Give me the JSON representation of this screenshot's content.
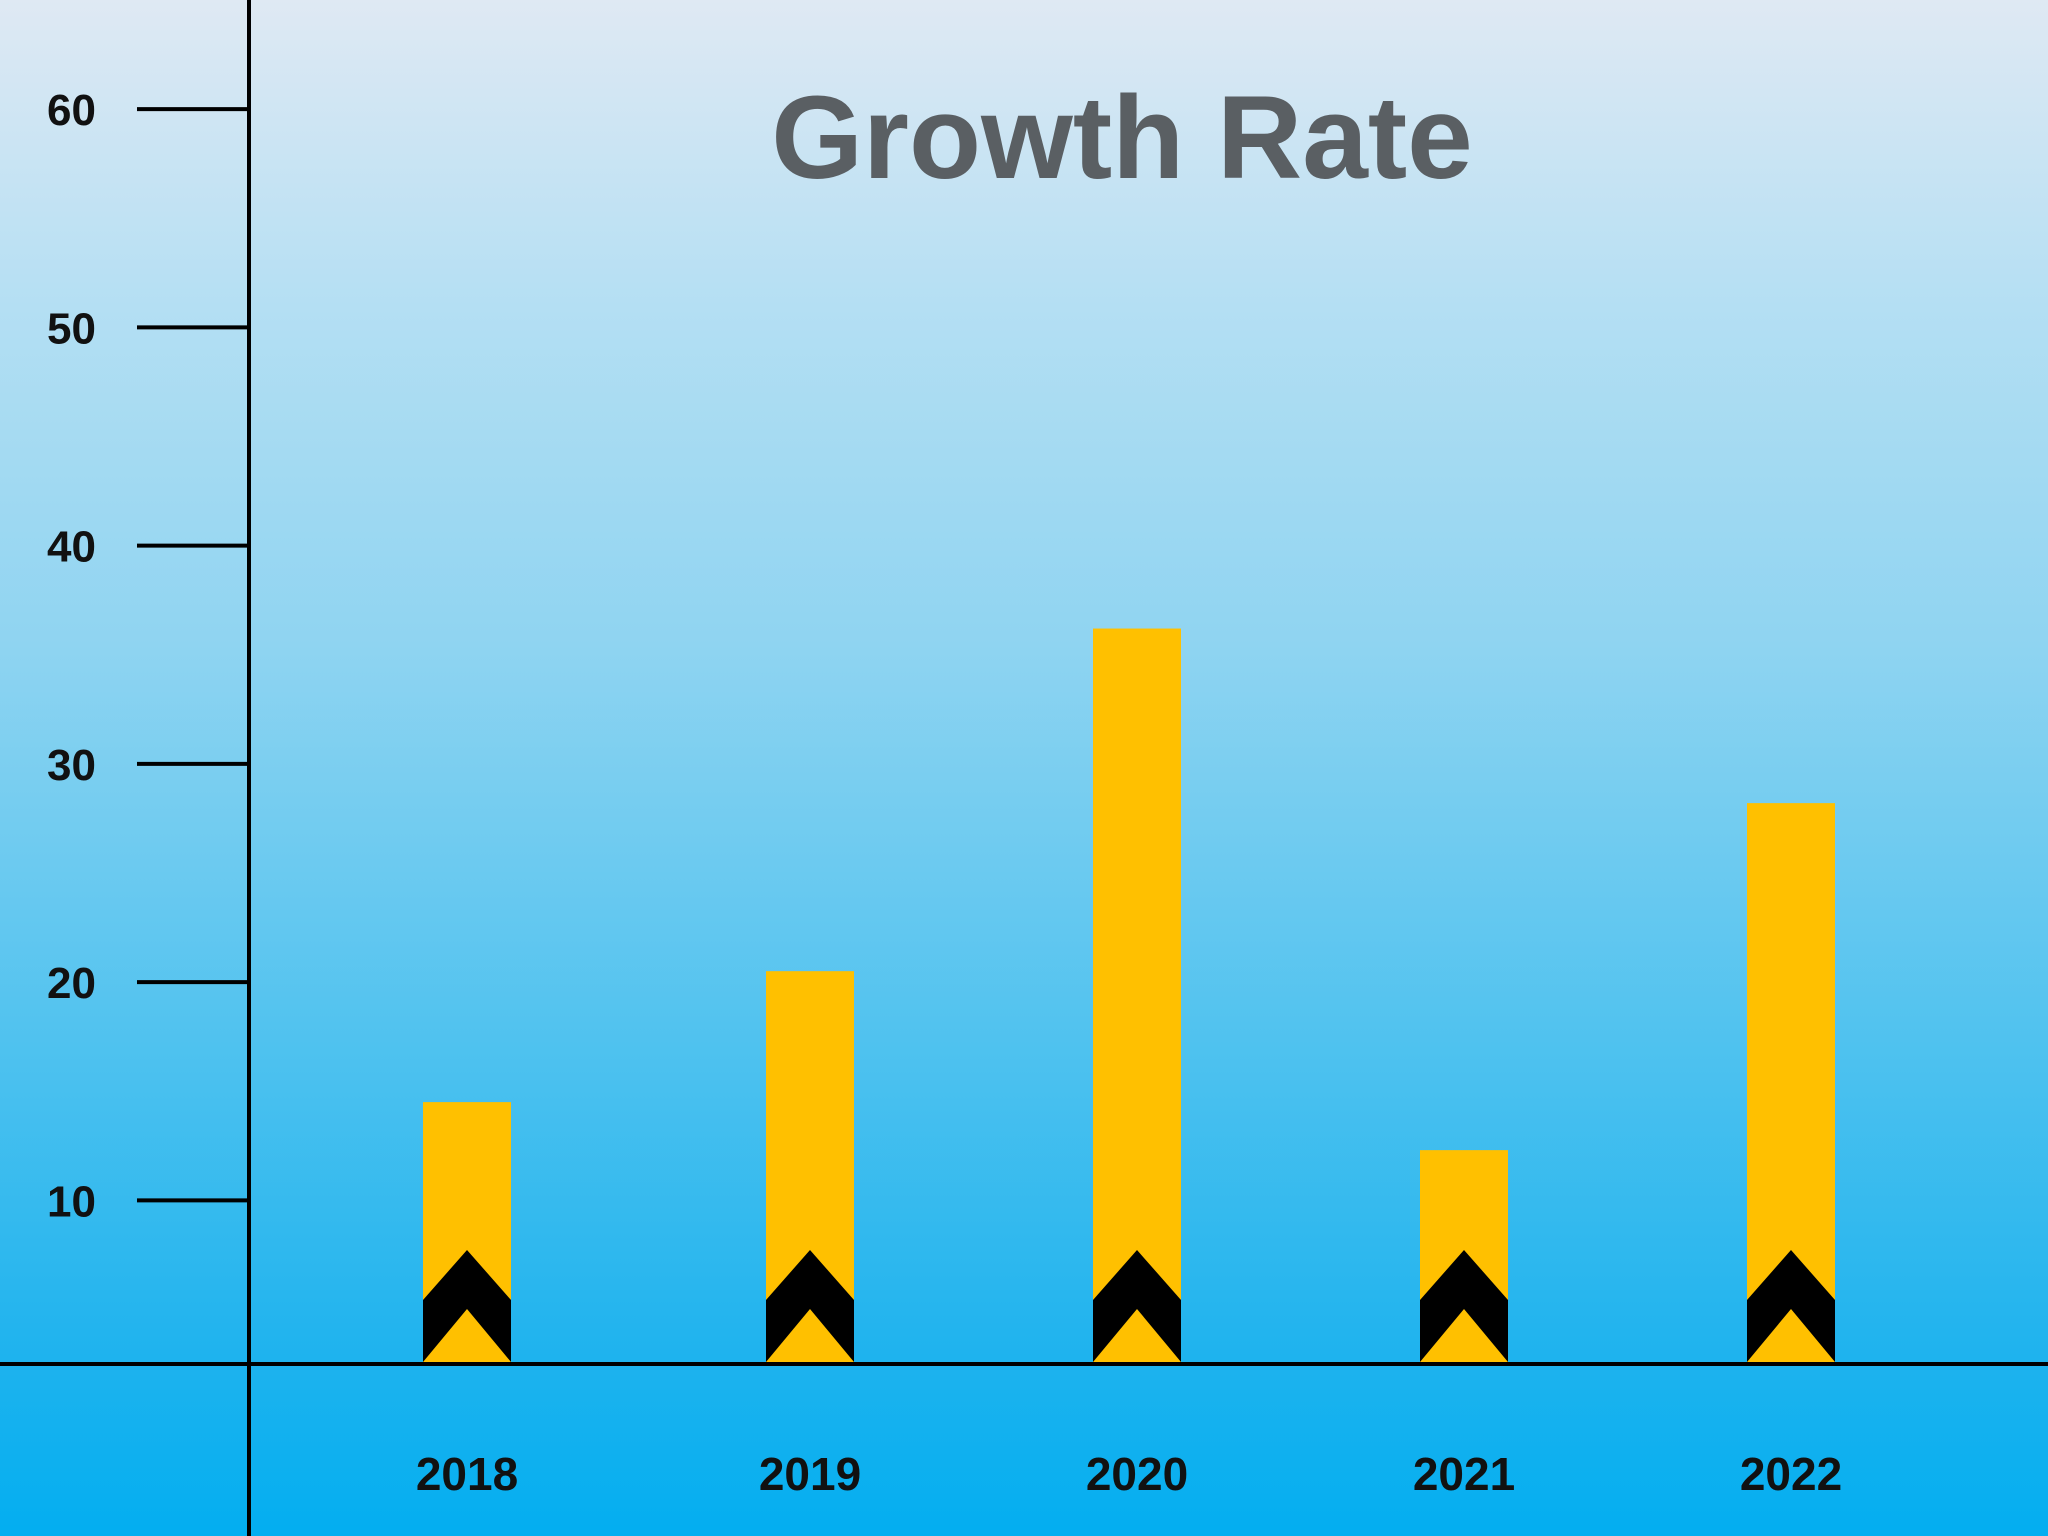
{
  "chart_data": {
    "type": "bar",
    "title": "Growth Rate",
    "xlabel": "",
    "ylabel": "",
    "categories": [
      "2018",
      "2019",
      "2020",
      "2021",
      "2022"
    ],
    "values": [
      14.5,
      20.5,
      36.2,
      12.3,
      28.2
    ],
    "ylim": [
      2.5,
      65
    ],
    "yticks": [
      10,
      20,
      30,
      40,
      50,
      60
    ],
    "grid": false,
    "legend": "none",
    "bar_color": "#ffc000",
    "chevron_color": "#000000",
    "axis_color": "#000000",
    "title_color": "#5a5f63",
    "bar_marker_icon": "double-chevron-up-icon"
  }
}
